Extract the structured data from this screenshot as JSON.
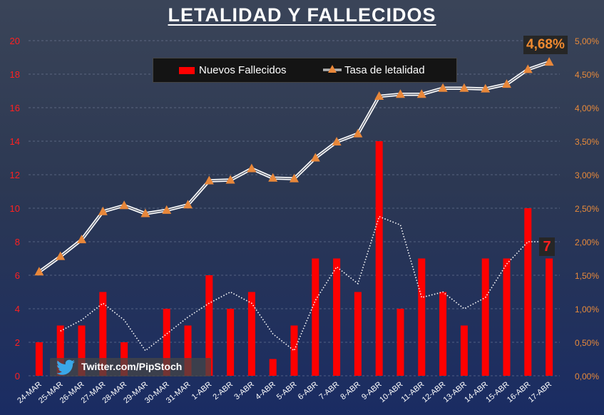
{
  "chart_data": {
    "type": "bar",
    "title": "LETALIDAD Y FALLECIDOS",
    "categories": [
      "24-MAR",
      "25-MAR",
      "26-MAR",
      "27-MAR",
      "28-MAR",
      "29-MAR",
      "30-MAR",
      "31-MAR",
      "1-ABR",
      "2-ABR",
      "3-ABR",
      "4-ABR",
      "5-ABR",
      "6-ABR",
      "7-ABR",
      "8-ABR",
      "9-ABR",
      "10-ABR",
      "11-ABR",
      "12-ABR",
      "13-ABR",
      "14-ABR",
      "15-ABR",
      "16-ABR",
      "17-ABR"
    ],
    "series": [
      {
        "name": "Nuevos Fallecidos",
        "type": "bar",
        "axis": "left",
        "color": "#ff0000",
        "values": [
          2,
          3,
          3,
          5,
          2,
          0,
          4,
          3,
          6,
          4,
          5,
          1,
          3,
          7,
          7,
          5,
          14,
          4,
          7,
          5,
          3,
          7,
          7,
          10,
          7
        ]
      },
      {
        "name": "Tasa de letalidad",
        "type": "line",
        "axis": "right",
        "color": "#e8873a",
        "values": [
          1.55,
          1.78,
          2.03,
          2.45,
          2.54,
          2.42,
          2.47,
          2.55,
          2.91,
          2.92,
          3.09,
          2.95,
          2.94,
          3.25,
          3.49,
          3.61,
          4.17,
          4.2,
          4.2,
          4.29,
          4.29,
          4.28,
          4.35,
          4.57,
          4.68
        ]
      },
      {
        "type": "line",
        "style": "dotted",
        "axis": "left",
        "color": "#ffffff",
        "values": [
          2.5,
          2.67,
          3.33,
          4.33,
          3.33,
          1.5,
          2.5,
          3.5,
          4.33,
          5,
          4.33,
          2.5,
          1.5,
          4.5,
          6.5,
          5.5,
          9.5,
          9,
          4.67,
          5,
          4,
          4.67,
          6.67,
          8,
          8
        ]
      }
    ],
    "y_left": {
      "min": 0,
      "max": 20,
      "ticks": [
        "0",
        "2",
        "4",
        "6",
        "8",
        "10",
        "12",
        "14",
        "16",
        "18",
        "20"
      ],
      "color": "#ff2020"
    },
    "y_right": {
      "min": 0,
      "max": 5,
      "ticks": [
        "0,00%",
        "0,50%",
        "1,00%",
        "1,50%",
        "2,00%",
        "2,50%",
        "3,00%",
        "3,50%",
        "4,00%",
        "4,50%",
        "5,00%"
      ],
      "color": "#e88a3a"
    },
    "grid": true,
    "legend_position": "top-center",
    "annotations": {
      "last_rate": "4,68%",
      "last_deaths": "7"
    }
  },
  "watermark": {
    "label": "Twitter.com/PipStoch",
    "icon": "twitter-bird-icon"
  }
}
